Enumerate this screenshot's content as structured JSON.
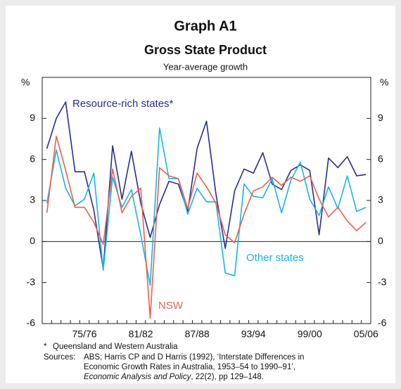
{
  "chart_data": {
    "type": "line",
    "title": "Graph A1",
    "subtitle": "Gross State Product",
    "description": "Year-average growth",
    "y_unit_left": "%",
    "y_unit_right": "%",
    "categories": [
      null,
      null,
      null,
      null,
      "75/76",
      null,
      null,
      null,
      null,
      null,
      "81/82",
      null,
      null,
      null,
      null,
      null,
      "87/88",
      null,
      null,
      null,
      null,
      null,
      "93/94",
      null,
      null,
      null,
      null,
      null,
      "99/00",
      null,
      null,
      null,
      null,
      null,
      "05/06"
    ],
    "series": [
      {
        "name": "Resource-rich states*",
        "color": "#2b2d8c",
        "values": [
          6.8,
          9.0,
          10.2,
          5.1,
          5.1,
          2.3,
          -2.0,
          7.0,
          3.1,
          6.6,
          2.8,
          0.3,
          2.7,
          4.4,
          4.2,
          2.2,
          6.8,
          8.8,
          3.5,
          -0.5,
          3.7,
          5.3,
          5.0,
          6.5,
          4.2,
          3.8,
          5.2,
          5.6,
          5.2,
          0.5,
          6.1,
          5.4,
          6.2,
          4.8,
          4.9
        ]
      },
      {
        "name": "Other states",
        "color": "#19b4e6",
        "values": [
          2.8,
          6.7,
          3.9,
          2.6,
          3.1,
          5.0,
          -2.1,
          4.7,
          2.5,
          3.8,
          0.5,
          -3.2,
          8.3,
          4.6,
          4.6,
          2.0,
          3.9,
          2.9,
          2.9,
          -2.3,
          -2.5,
          4.2,
          3.3,
          3.2,
          4.6,
          2.1,
          4.5,
          5.8,
          3.1,
          1.9,
          4.0,
          2.4,
          4.8,
          2.2,
          2.5
        ]
      },
      {
        "name": "NSW",
        "color": "#e8604c",
        "values": [
          2.1,
          7.7,
          5.2,
          2.5,
          2.5,
          1.4,
          -0.2,
          5.3,
          2.1,
          3.3,
          3.9,
          -5.6,
          5.4,
          4.8,
          4.6,
          2.4,
          5.0,
          4.0,
          2.8,
          0.5,
          -0.1,
          2.0,
          3.7,
          4.0,
          4.7,
          4.1,
          4.7,
          4.4,
          4.8,
          3.1,
          1.8,
          2.5,
          1.5,
          0.8,
          1.4
        ]
      }
    ],
    "ylim": [
      -6,
      12
    ],
    "yticks": [
      -6,
      -3,
      0,
      3,
      6,
      9
    ],
    "footnote_mark": "*",
    "footnote": "Queensland and Western Australia",
    "sources_label": "Sources:",
    "sources_lines": [
      "ABS; Harris CP and D Harris (1992), ‘Interstate Differences in",
      "Economic Growth Rates in Australia, 1953–54 to 1990–91’,"
    ],
    "sources_italic": "Economic Analysis and Policy",
    "sources_tail": ", 22(2), pp 129–148."
  }
}
